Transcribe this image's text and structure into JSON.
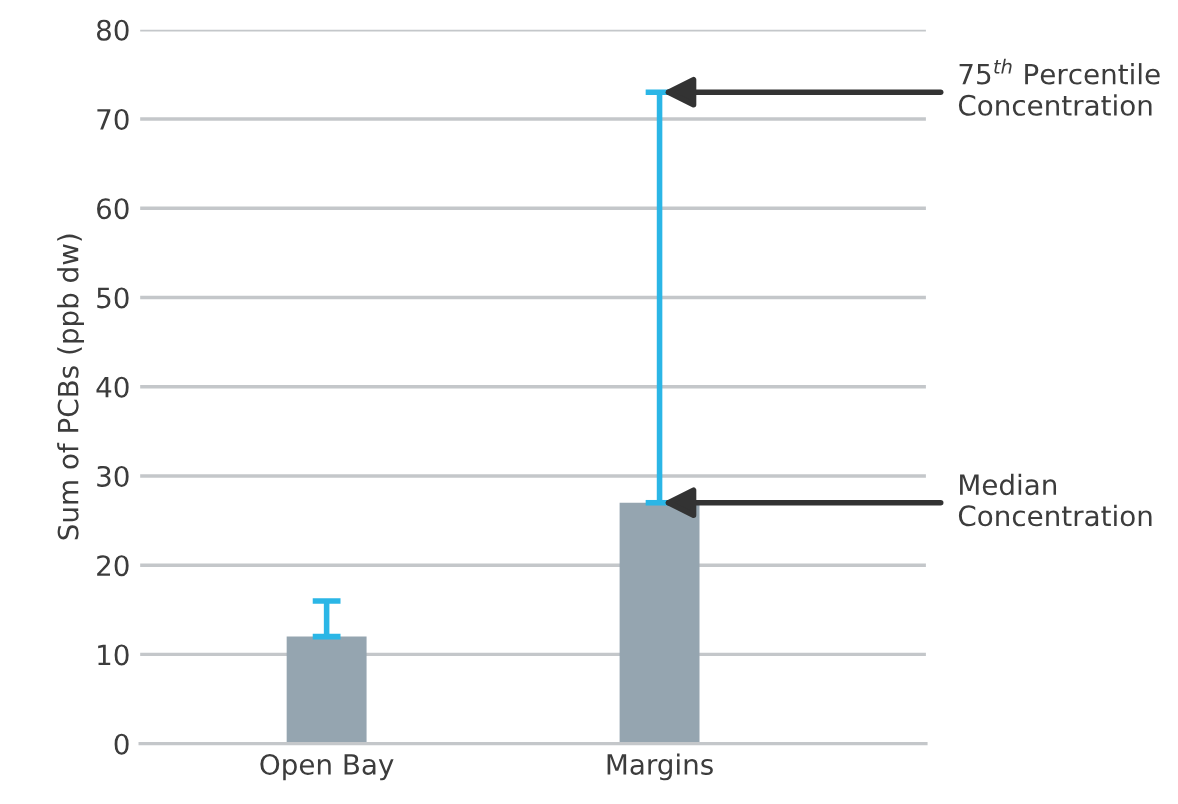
{
  "chart_data": {
    "type": "bar",
    "ylabel": "Sum of PCBs (ppb dw)",
    "categories": [
      "Open Bay",
      "Margins"
    ],
    "values": [
      12,
      27
    ],
    "color": "#95a5b0",
    "errors": [
      [
        12,
        16
      ],
      [
        27,
        73
      ]
    ],
    "ylim": [
      0,
      80
    ],
    "yticks": [
      0,
      10,
      20,
      30,
      40,
      50,
      60,
      70,
      80
    ],
    "grid": "y",
    "annotations": [
      {
        "text": "75$^{th}$ Percentile\nConcentration",
        "x": "Margins",
        "y": 73
      },
      {
        "text": "Median\nConcentration",
        "x": "Margins",
        "y": 27
      }
    ]
  }
}
